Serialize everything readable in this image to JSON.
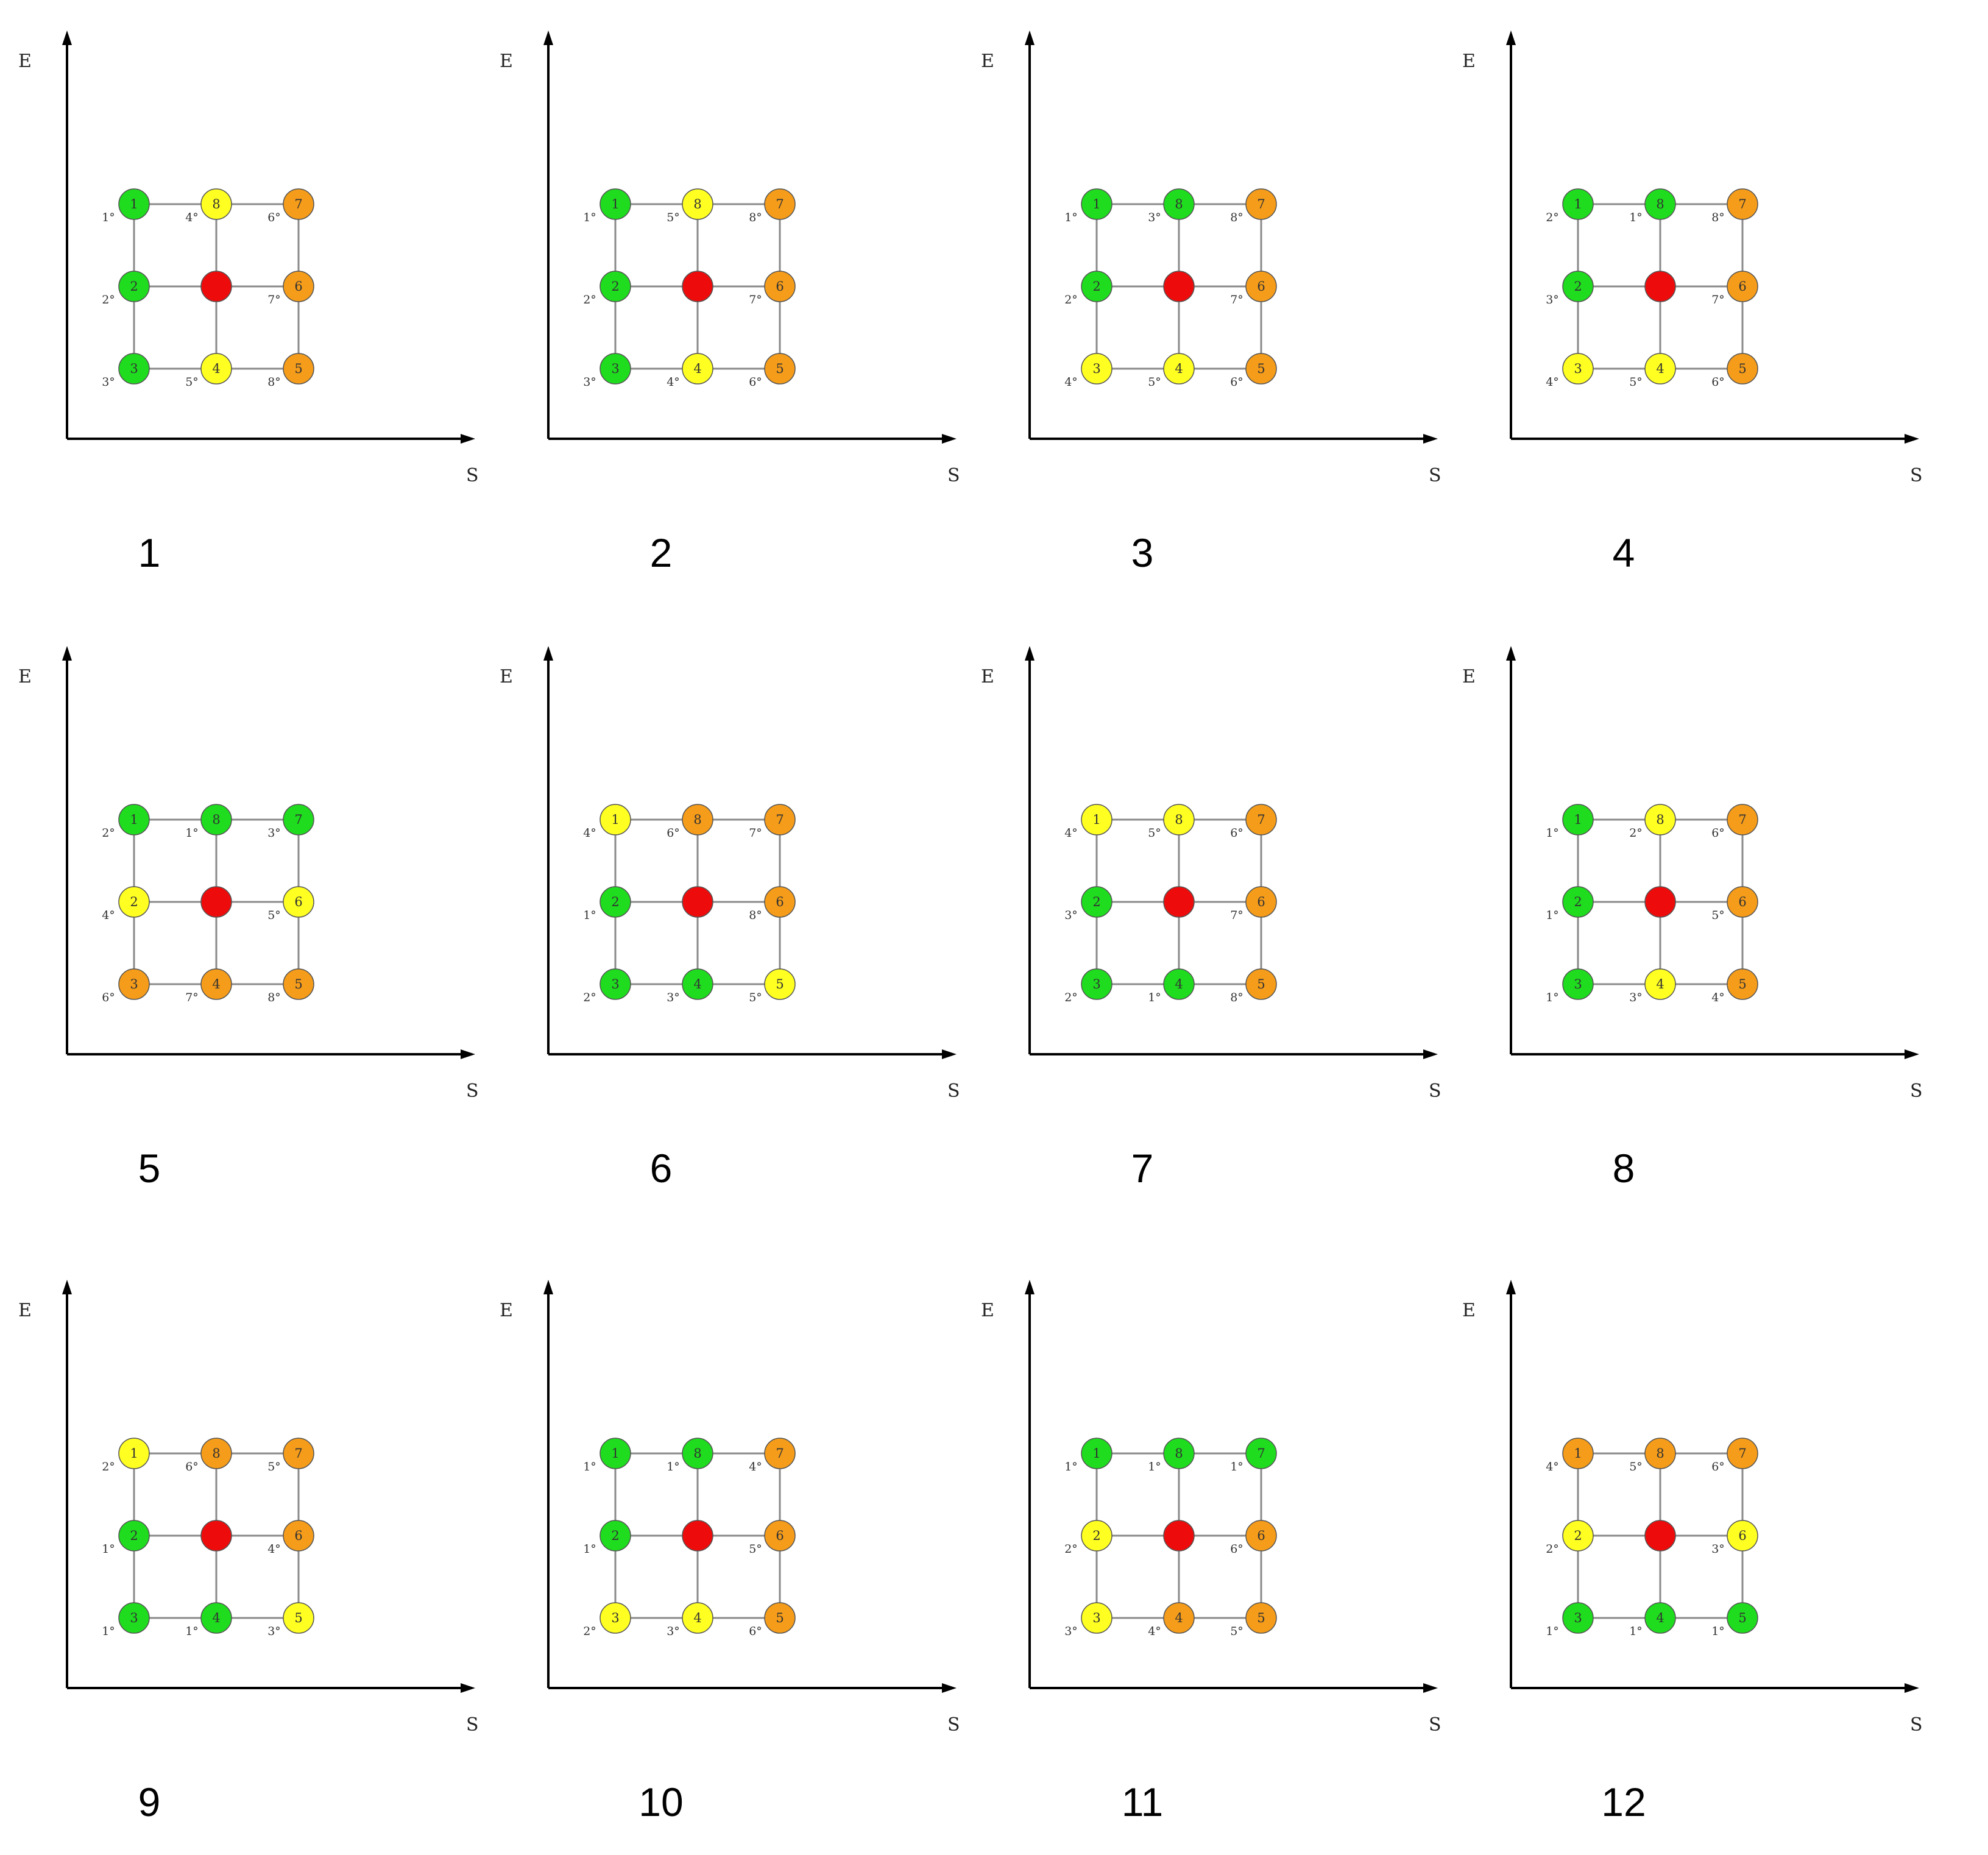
{
  "axis_labels": {
    "y": "E",
    "x": "S"
  },
  "colors": {
    "green": "#1fdc1f",
    "yellow": "#ffff22",
    "orange": "#f59c1a",
    "red": "#ee0b0b",
    "line": "#8a8a8a",
    "axis": "#000000"
  },
  "panels": [
    {
      "caption": "1",
      "nodes": [
        {
          "num": "1",
          "color": "green"
        },
        {
          "num": "2",
          "color": "green"
        },
        {
          "num": "3",
          "color": "green"
        },
        {
          "num": "4",
          "color": "yellow"
        },
        {
          "num": "5",
          "color": "orange"
        },
        {
          "num": "6",
          "color": "orange"
        },
        {
          "num": "7",
          "color": "orange"
        },
        {
          "num": "8",
          "color": "yellow"
        }
      ],
      "labels": {
        "1": "1°",
        "2": "2°",
        "3": "3°",
        "4": "5°",
        "5": "8°",
        "6": "7°",
        "7": "6°",
        "8": "4°"
      }
    },
    {
      "caption": "2",
      "nodes": [
        {
          "num": "1",
          "color": "green"
        },
        {
          "num": "2",
          "color": "green"
        },
        {
          "num": "3",
          "color": "green"
        },
        {
          "num": "4",
          "color": "yellow"
        },
        {
          "num": "5",
          "color": "orange"
        },
        {
          "num": "6",
          "color": "orange"
        },
        {
          "num": "7",
          "color": "orange"
        },
        {
          "num": "8",
          "color": "yellow"
        }
      ],
      "labels": {
        "1": "1°",
        "2": "2°",
        "3": "3°",
        "4": "4°",
        "5": "6°",
        "6": "7°",
        "7": "8°",
        "8": "5°"
      }
    },
    {
      "caption": "3",
      "nodes": [
        {
          "num": "1",
          "color": "green"
        },
        {
          "num": "2",
          "color": "green"
        },
        {
          "num": "3",
          "color": "yellow"
        },
        {
          "num": "4",
          "color": "yellow"
        },
        {
          "num": "5",
          "color": "orange"
        },
        {
          "num": "6",
          "color": "orange"
        },
        {
          "num": "7",
          "color": "orange"
        },
        {
          "num": "8",
          "color": "green"
        }
      ],
      "labels": {
        "1": "1°",
        "2": "2°",
        "3": "4°",
        "4": "5°",
        "5": "6°",
        "6": "7°",
        "7": "8°",
        "8": "3°"
      }
    },
    {
      "caption": "4",
      "nodes": [
        {
          "num": "1",
          "color": "green"
        },
        {
          "num": "2",
          "color": "green"
        },
        {
          "num": "3",
          "color": "yellow"
        },
        {
          "num": "4",
          "color": "yellow"
        },
        {
          "num": "5",
          "color": "orange"
        },
        {
          "num": "6",
          "color": "orange"
        },
        {
          "num": "7",
          "color": "orange"
        },
        {
          "num": "8",
          "color": "green"
        }
      ],
      "labels": {
        "1": "2°",
        "2": "3°",
        "3": "4°",
        "4": "5°",
        "5": "6°",
        "6": "7°",
        "7": "8°",
        "8": "1°"
      }
    },
    {
      "caption": "5",
      "nodes": [
        {
          "num": "1",
          "color": "green"
        },
        {
          "num": "2",
          "color": "yellow"
        },
        {
          "num": "3",
          "color": "orange"
        },
        {
          "num": "4",
          "color": "orange"
        },
        {
          "num": "5",
          "color": "orange"
        },
        {
          "num": "6",
          "color": "yellow"
        },
        {
          "num": "7",
          "color": "green"
        },
        {
          "num": "8",
          "color": "green"
        }
      ],
      "labels": {
        "1": "2°",
        "2": "4°",
        "3": "6°",
        "4": "7°",
        "5": "8°",
        "6": "5°",
        "7": "3°",
        "8": "1°"
      }
    },
    {
      "caption": "6",
      "nodes": [
        {
          "num": "1",
          "color": "yellow"
        },
        {
          "num": "2",
          "color": "green"
        },
        {
          "num": "3",
          "color": "green"
        },
        {
          "num": "4",
          "color": "green"
        },
        {
          "num": "5",
          "color": "yellow"
        },
        {
          "num": "6",
          "color": "orange"
        },
        {
          "num": "7",
          "color": "orange"
        },
        {
          "num": "8",
          "color": "orange"
        }
      ],
      "labels": {
        "1": "4°",
        "2": "1°",
        "3": "2°",
        "4": "3°",
        "5": "5°",
        "6": "8°",
        "7": "7°",
        "8": "6°"
      }
    },
    {
      "caption": "7",
      "nodes": [
        {
          "num": "1",
          "color": "yellow"
        },
        {
          "num": "2",
          "color": "green"
        },
        {
          "num": "3",
          "color": "green"
        },
        {
          "num": "4",
          "color": "green"
        },
        {
          "num": "5",
          "color": "orange"
        },
        {
          "num": "6",
          "color": "orange"
        },
        {
          "num": "7",
          "color": "orange"
        },
        {
          "num": "8",
          "color": "yellow"
        }
      ],
      "labels": {
        "1": "4°",
        "2": "3°",
        "3": "2°",
        "4": "1°",
        "5": "8°",
        "6": "7°",
        "7": "6°",
        "8": "5°"
      }
    },
    {
      "caption": "8",
      "nodes": [
        {
          "num": "1",
          "color": "green"
        },
        {
          "num": "2",
          "color": "green"
        },
        {
          "num": "3",
          "color": "green"
        },
        {
          "num": "4",
          "color": "yellow"
        },
        {
          "num": "5",
          "color": "orange"
        },
        {
          "num": "6",
          "color": "orange"
        },
        {
          "num": "7",
          "color": "orange"
        },
        {
          "num": "8",
          "color": "yellow"
        }
      ],
      "labels": {
        "1": "1°",
        "2": "1°",
        "3": "1°",
        "4": "3°",
        "5": "4°",
        "6": "5°",
        "7": "6°",
        "8": "2°"
      }
    },
    {
      "caption": "9",
      "nodes": [
        {
          "num": "1",
          "color": "yellow"
        },
        {
          "num": "2",
          "color": "green"
        },
        {
          "num": "3",
          "color": "green"
        },
        {
          "num": "4",
          "color": "green"
        },
        {
          "num": "5",
          "color": "yellow"
        },
        {
          "num": "6",
          "color": "orange"
        },
        {
          "num": "7",
          "color": "orange"
        },
        {
          "num": "8",
          "color": "orange"
        }
      ],
      "labels": {
        "1": "2°",
        "2": "1°",
        "3": "1°",
        "4": "1°",
        "5": "3°",
        "6": "4°",
        "7": "5°",
        "8": "6°"
      }
    },
    {
      "caption": "10",
      "nodes": [
        {
          "num": "1",
          "color": "green"
        },
        {
          "num": "2",
          "color": "green"
        },
        {
          "num": "3",
          "color": "yellow"
        },
        {
          "num": "4",
          "color": "yellow"
        },
        {
          "num": "5",
          "color": "orange"
        },
        {
          "num": "6",
          "color": "orange"
        },
        {
          "num": "7",
          "color": "orange"
        },
        {
          "num": "8",
          "color": "green"
        }
      ],
      "labels": {
        "1": "1°",
        "2": "1°",
        "3": "2°",
        "4": "3°",
        "5": "6°",
        "6": "5°",
        "7": "4°",
        "8": "1°"
      }
    },
    {
      "caption": "11",
      "nodes": [
        {
          "num": "1",
          "color": "green"
        },
        {
          "num": "2",
          "color": "yellow"
        },
        {
          "num": "3",
          "color": "yellow"
        },
        {
          "num": "4",
          "color": "orange"
        },
        {
          "num": "5",
          "color": "orange"
        },
        {
          "num": "6",
          "color": "orange"
        },
        {
          "num": "7",
          "color": "green"
        },
        {
          "num": "8",
          "color": "green"
        }
      ],
      "labels": {
        "1": "1°",
        "2": "2°",
        "3": "3°",
        "4": "4°",
        "5": "5°",
        "6": "6°",
        "7": "1°",
        "8": "1°"
      }
    },
    {
      "caption": "12",
      "nodes": [
        {
          "num": "1",
          "color": "orange"
        },
        {
          "num": "2",
          "color": "yellow"
        },
        {
          "num": "3",
          "color": "green"
        },
        {
          "num": "4",
          "color": "green"
        },
        {
          "num": "5",
          "color": "green"
        },
        {
          "num": "6",
          "color": "yellow"
        },
        {
          "num": "7",
          "color": "orange"
        },
        {
          "num": "8",
          "color": "orange"
        }
      ],
      "labels": {
        "1": "4°",
        "2": "2°",
        "3": "1°",
        "4": "1°",
        "5": "1°",
        "6": "3°",
        "7": "6°",
        "8": "5°"
      }
    }
  ]
}
